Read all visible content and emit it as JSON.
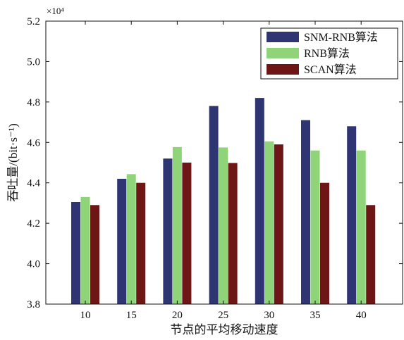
{
  "chart_data": {
    "type": "bar",
    "xlabel": "节点的平均移动速度",
    "ylabel": "吞吐量/(bit·s⁻¹)",
    "y_multiplier": "×10⁴",
    "categories": [
      "10",
      "15",
      "20",
      "25",
      "30",
      "35",
      "40"
    ],
    "ylim": [
      3.8,
      5.2
    ],
    "yticks": [
      "3.8",
      "4.0",
      "4.2",
      "4.4",
      "4.6",
      "4.8",
      "5.0",
      "5.2"
    ],
    "series": [
      {
        "name": "SNM-RNB算法",
        "color": "#2f3472",
        "values": [
          4.305,
          4.42,
          4.52,
          4.78,
          4.82,
          4.71,
          4.68
        ]
      },
      {
        "name": "RNB算法",
        "color": "#8fd479",
        "values": [
          4.33,
          4.443,
          4.577,
          4.575,
          4.605,
          4.56,
          4.56
        ]
      },
      {
        "name": "SCAN算法",
        "color": "#6e1616",
        "values": [
          4.29,
          4.4,
          4.5,
          4.498,
          4.59,
          4.4,
          4.29
        ]
      }
    ],
    "legend_position": "top-right",
    "grid": false
  }
}
